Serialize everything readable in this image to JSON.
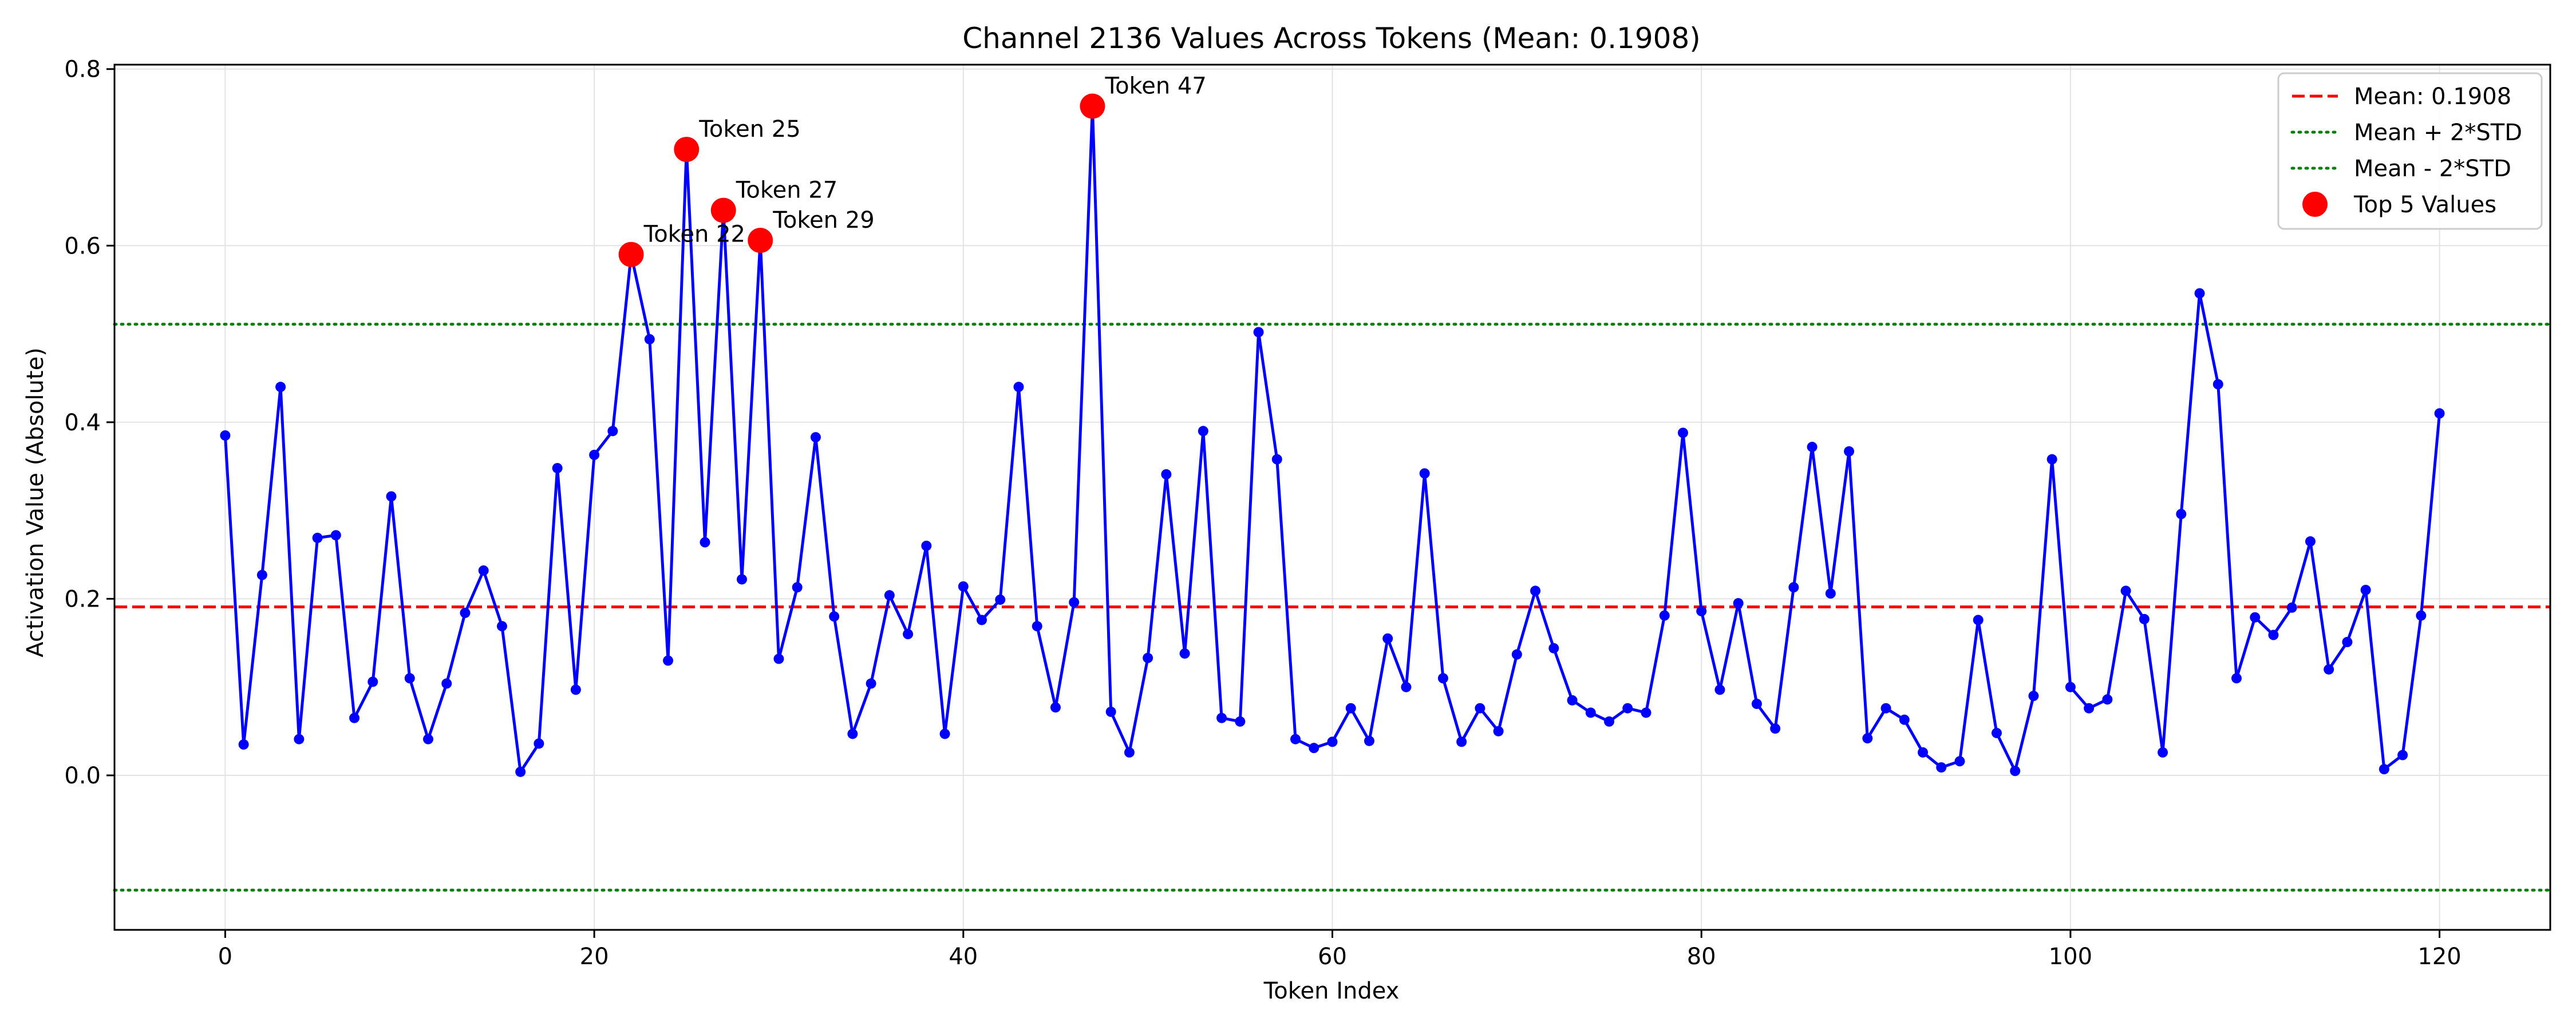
{
  "chart_data": {
    "type": "line",
    "title": "Channel 2136 Values Across Tokens (Mean: 0.1908)",
    "xlabel": "Token Index",
    "ylabel": "Activation Value (Absolute)",
    "xlim": [
      -6,
      126
    ],
    "ylim": [
      -0.175,
      0.805
    ],
    "xticks": [
      0,
      20,
      40,
      60,
      80,
      100,
      120
    ],
    "xtick_labels": [
      "0",
      "20",
      "40",
      "60",
      "80",
      "100",
      "120"
    ],
    "yticks": [
      0.0,
      0.2,
      0.4,
      0.6,
      0.8
    ],
    "ytick_labels": [
      "0.0",
      "0.2",
      "0.4",
      "0.6",
      "0.8"
    ],
    "grid": true,
    "legend_position": "top-right",
    "series": [
      {
        "name": "Channel 2136",
        "color": "#0000ff",
        "x_start": 0,
        "values": [
          0.385,
          0.035,
          0.227,
          0.44,
          0.041,
          0.269,
          0.272,
          0.065,
          0.106,
          0.316,
          0.11,
          0.041,
          0.104,
          0.184,
          0.232,
          0.169,
          0.004,
          0.036,
          0.348,
          0.097,
          0.363,
          0.39,
          0.59,
          0.494,
          0.13,
          0.709,
          0.264,
          0.64,
          0.222,
          0.606,
          0.132,
          0.213,
          0.383,
          0.18,
          0.047,
          0.104,
          0.204,
          0.16,
          0.26,
          0.047,
          0.214,
          0.176,
          0.199,
          0.44,
          0.169,
          0.077,
          0.196,
          0.758,
          0.072,
          0.026,
          0.133,
          0.341,
          0.138,
          0.39,
          0.065,
          0.061,
          0.502,
          0.358,
          0.041,
          0.031,
          0.038,
          0.076,
          0.039,
          0.155,
          0.1,
          0.342,
          0.11,
          0.038,
          0.076,
          0.05,
          0.137,
          0.209,
          0.144,
          0.085,
          0.071,
          0.061,
          0.076,
          0.071,
          0.181,
          0.388,
          0.186,
          0.097,
          0.195,
          0.081,
          0.053,
          0.213,
          0.372,
          0.206,
          0.367,
          0.042,
          0.076,
          0.063,
          0.026,
          0.009,
          0.016,
          0.176,
          0.048,
          0.005,
          0.09,
          0.358,
          0.1,
          0.076,
          0.086,
          0.209,
          0.177,
          0.026,
          0.296,
          0.546,
          0.443,
          0.11,
          0.179,
          0.159,
          0.19,
          0.265,
          0.12,
          0.151,
          0.21,
          0.007,
          0.023,
          0.181,
          0.41
        ]
      }
    ],
    "reference_lines": [
      {
        "name": "Mean: 0.1908",
        "y": 0.1908,
        "color": "#ff0000",
        "style": "dashed"
      },
      {
        "name": "Mean + 2*STD",
        "y": 0.511,
        "color": "#008000",
        "style": "dotted"
      },
      {
        "name": "Mean - 2*STD",
        "y": -0.13,
        "color": "#008000",
        "style": "dotted"
      }
    ],
    "top_points": {
      "name": "Top 5 Values",
      "color": "#ff0000",
      "points": [
        {
          "x": 22,
          "y": 0.59,
          "label": "Token 22"
        },
        {
          "x": 25,
          "y": 0.709,
          "label": "Token 25"
        },
        {
          "x": 27,
          "y": 0.64,
          "label": "Token 27"
        },
        {
          "x": 29,
          "y": 0.606,
          "label": "Token 29"
        },
        {
          "x": 47,
          "y": 0.758,
          "label": "Token 47"
        }
      ]
    },
    "legend": [
      "Mean: 0.1908",
      "Mean + 2*STD",
      "Mean - 2*STD",
      "Top 5 Values"
    ]
  }
}
